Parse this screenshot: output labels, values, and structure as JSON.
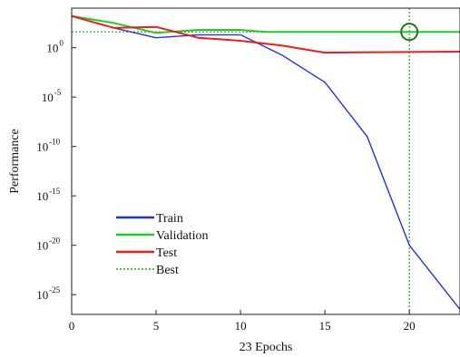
{
  "chart_data": {
    "type": "line",
    "title": "",
    "xlabel": "23 Epochs",
    "ylabel": "Performance",
    "y_scale": "log",
    "xlim": [
      0,
      23
    ],
    "ylim_exponent": [
      -27,
      4
    ],
    "x_ticks": [
      {
        "value": 0,
        "label": "0"
      },
      {
        "value": 5,
        "label": "5"
      },
      {
        "value": 10,
        "label": "10"
      },
      {
        "value": 15,
        "label": "15"
      },
      {
        "value": 20,
        "label": "20"
      }
    ],
    "y_ticks": [
      {
        "exponent": 0,
        "base": "10",
        "sup": "0"
      },
      {
        "exponent": -5,
        "base": "10",
        "sup": "-5"
      },
      {
        "exponent": -10,
        "base": "10",
        "sup": "-10"
      },
      {
        "exponent": -15,
        "base": "10",
        "sup": "-15"
      },
      {
        "exponent": -20,
        "base": "10",
        "sup": "-20"
      },
      {
        "exponent": -25,
        "base": "10",
        "sup": "-25"
      }
    ],
    "series": [
      {
        "name": "Train",
        "color": "#2233dd",
        "x": [
          0,
          2.5,
          5,
          7.5,
          10,
          12.5,
          15,
          17.5,
          20,
          23
        ],
        "log10_y": [
          3.2,
          2.0,
          1.0,
          1.3,
          1.3,
          -0.8,
          -3.5,
          -9.0,
          -20.0,
          -26.5
        ]
      },
      {
        "name": "Validation",
        "color": "#22cc22",
        "x": [
          0,
          2.5,
          5,
          7.5,
          10,
          11.5,
          23
        ],
        "log10_y": [
          3.2,
          2.5,
          1.5,
          1.8,
          1.8,
          1.6,
          1.6
        ]
      },
      {
        "name": "Test",
        "color": "#ee1c1c",
        "x": [
          0,
          2.5,
          5,
          7.5,
          10,
          12.5,
          15,
          23
        ],
        "log10_y": [
          3.2,
          2.0,
          2.1,
          1.0,
          0.7,
          0.2,
          -0.5,
          -0.4
        ]
      }
    ],
    "best": {
      "name": "Best",
      "epoch": 20,
      "log10_y": 1.6,
      "color": "#22aa22"
    },
    "legend": {
      "position": "bottom-left",
      "items": [
        {
          "label": "Train",
          "color": "#2233dd",
          "style": "solid"
        },
        {
          "label": "Validation",
          "color": "#22cc22",
          "style": "solid"
        },
        {
          "label": "Test",
          "color": "#ee1c1c",
          "style": "solid"
        },
        {
          "label": "Best",
          "color": "#22aa22",
          "style": "dotted"
        }
      ]
    },
    "grid": false
  }
}
